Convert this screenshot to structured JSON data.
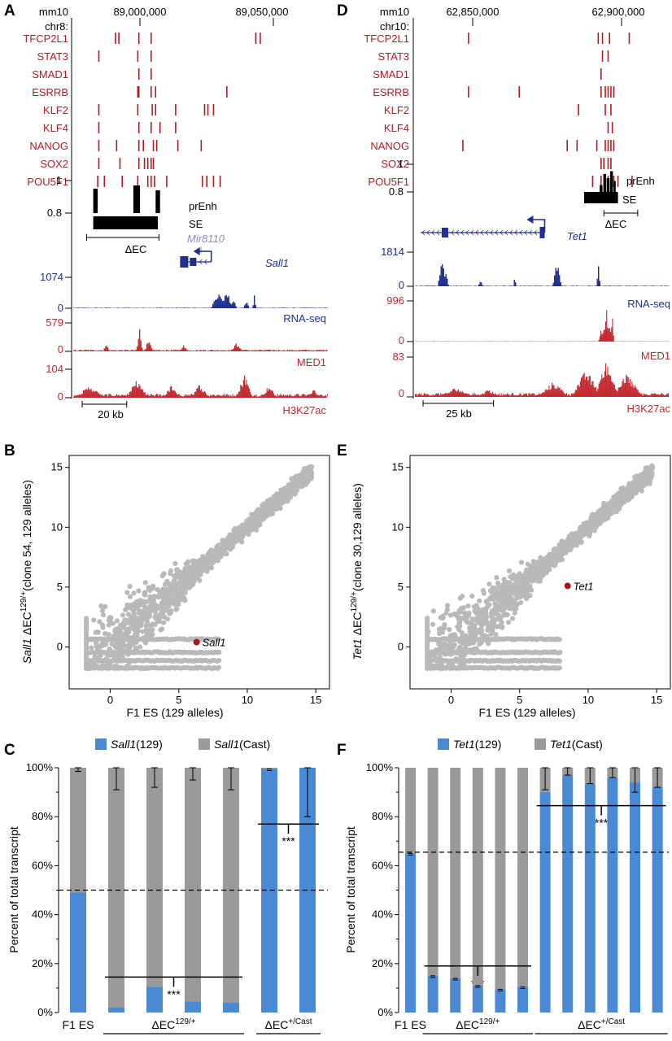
{
  "panel_labels": {
    "a": "A",
    "b": "B",
    "c": "C",
    "d": "D",
    "e": "E",
    "f": "F"
  },
  "colors": {
    "tf_red": "#b01e23",
    "rnaseq_blue": "#1f2f8f",
    "signal_red": "#c1272d",
    "mir_label": "#8a8fc8",
    "bar_blue": "#4a8ad4",
    "bar_gray": "#9a9a9a",
    "scatter_gray": "#b9b9b9",
    "highlight_point": "#a4161b",
    "black": "#000000"
  },
  "chart_data": [
    {
      "id": "A",
      "type": "genome-browser",
      "assembly": "mm10",
      "chrom": "chr8:",
      "coord_ticks": [
        {
          "label": "89,000,000",
          "pos": 89000000
        },
        {
          "label": "89,050,000",
          "pos": 89050000
        }
      ],
      "view_range": [
        88966000,
        89080000
      ],
      "tf_tracks": [
        {
          "name": "TFCP2L1",
          "peaks": [
            88985000,
            88986500,
            88995500,
            89001000,
            89048000,
            89050000
          ]
        },
        {
          "name": "STAT3",
          "peaks": [
            88977500,
            88995000,
            89001000
          ]
        },
        {
          "name": "SMAD1",
          "peaks": [
            88995500,
            89001000
          ]
        },
        {
          "name": "ESRRB",
          "peaks": [
            88995000,
            88995500,
            89001000,
            89003000,
            89035000
          ]
        },
        {
          "name": "KLF2",
          "peaks": [
            88977500,
            88995000,
            89001500,
            89003000,
            89012000,
            89025000,
            89026500,
            89029000
          ]
        },
        {
          "name": "KLF4",
          "peaks": [
            88977500,
            88995500,
            89001000,
            89005000,
            89012000
          ]
        },
        {
          "name": "NANOG",
          "peaks": [
            88977500,
            88985500,
            88995500,
            88997500,
            89002000,
            89003500,
            89013000,
            89023500
          ]
        },
        {
          "name": "SOX2",
          "peaks": [
            88977500,
            88987000,
            88995500,
            88998000,
            88999500,
            89001000,
            89002000
          ]
        },
        {
          "name": "POU5F1",
          "peaks": [
            88977000,
            88980000,
            88988000,
            88995000,
            88999500,
            89001000,
            89002500,
            89008000,
            89024000,
            89026000,
            89029000,
            89032000
          ]
        }
      ],
      "prEnh": {
        "label": "prEnh",
        "ymin": "0.8",
        "ymax": "1",
        "bars": [
          {
            "start": 88975000,
            "end": 88977000,
            "value": 0.95
          },
          {
            "start": 88993000,
            "end": 88996000,
            "value": 0.97
          },
          {
            "start": 89003000,
            "end": 89005000,
            "value": 0.94
          }
        ]
      },
      "se": {
        "label": "SE",
        "start": 88975000,
        "end": 89004000
      },
      "deletion": {
        "label": "ΔEC",
        "start": 88972000,
        "end": 89004500
      },
      "genes": [
        {
          "name": "Mir8110",
          "kind": "mirna"
        },
        {
          "name": "Sall1",
          "kind": "gene",
          "start": 89014000,
          "end": 89028000,
          "strand": "-"
        }
      ],
      "signal_tracks": [
        {
          "name": "RNA-seq",
          "ymax": "1074",
          "ymin": "0",
          "color_key": "rnaseq_blue"
        },
        {
          "name": "MED1",
          "ymax": "579",
          "ymin": "0",
          "color_key": "signal_red"
        },
        {
          "name": "H3K27ac",
          "ymax": "104",
          "ymin": "0",
          "color_key": "signal_red"
        }
      ],
      "scale_bar": {
        "label": "20 kb",
        "kb": 20
      }
    },
    {
      "id": "D",
      "type": "genome-browser",
      "assembly": "mm10",
      "chrom": "chr10:",
      "coord_ticks": [
        {
          "label": "62,850,000",
          "pos": 62850000
        },
        {
          "label": "62,900,000",
          "pos": 62900000
        }
      ],
      "view_range": [
        62830000,
        62920000
      ],
      "tf_tracks": [
        {
          "name": "TFCP2L1",
          "peaks": [
            62849000,
            62895000,
            62896500,
            62899000,
            62906000
          ]
        },
        {
          "name": "STAT3",
          "peaks": [
            62896500,
            62898500
          ]
        },
        {
          "name": "SMAD1",
          "peaks": [
            62896000
          ]
        },
        {
          "name": "ESRRB",
          "peaks": [
            62849000,
            62867000,
            62896000,
            62897500,
            62898500,
            62899500,
            62900500
          ]
        },
        {
          "name": "KLF2",
          "peaks": [
            62888000,
            62897500,
            62899500
          ]
        },
        {
          "name": "KLF4",
          "peaks": [
            62898500,
            62900000
          ]
        },
        {
          "name": "NANOG",
          "peaks": [
            62847000,
            62884000,
            62887500,
            62894500,
            62897500,
            62898500,
            62899500,
            62900500
          ]
        },
        {
          "name": "SOX2",
          "peaks": [
            62896000,
            62897000,
            62898500,
            62899500
          ]
        },
        {
          "name": "POU5F1",
          "peaks": [
            62893000,
            62896000,
            62897500,
            62898500,
            62899500,
            62900500,
            62902000,
            62907000
          ]
        }
      ],
      "prEnh": {
        "label": "prEnh",
        "ymin": "0.8",
        "ymax": "1",
        "bars": [
          {
            "start": 62895500,
            "end": 62896500,
            "value": 0.85
          },
          {
            "start": 62896800,
            "end": 62897800,
            "value": 0.93
          },
          {
            "start": 62898000,
            "end": 62899000,
            "value": 0.9
          },
          {
            "start": 62899200,
            "end": 62900200,
            "value": 0.95
          },
          {
            "start": 62900400,
            "end": 62901200,
            "value": 0.88
          }
        ]
      },
      "se": {
        "label": "SE",
        "start": 62890000,
        "end": 62902000
      },
      "deletion": {
        "label": "ΔEC",
        "start": 62897000,
        "end": 62909000
      },
      "genes": [
        {
          "name": "Tet1",
          "kind": "gene",
          "start": 62832000,
          "end": 62876000,
          "strand": "-"
        }
      ],
      "signal_tracks": [
        {
          "name": "RNA-seq",
          "ymax": "1814",
          "ymin": "0",
          "color_key": "rnaseq_blue"
        },
        {
          "name": "MED1",
          "ymax": "996",
          "ymin": "0",
          "color_key": "signal_red"
        },
        {
          "name": "H3K27ac",
          "ymax": "83",
          "ymin": "0",
          "color_key": "signal_red"
        }
      ],
      "scale_bar": {
        "label": "25 kb",
        "kb": 25
      }
    },
    {
      "id": "B",
      "type": "scatter",
      "xlabel": "F1 ES (129 alleles)",
      "ylabel_parts": {
        "gene": "Sall1",
        "mid": " ΔEC",
        "sup": "129/+",
        "tail": "(clone 54, 129 alleles)"
      },
      "xlim": [
        -3,
        16
      ],
      "ylim": [
        -3.5,
        16
      ],
      "xticks": [
        0,
        5,
        10,
        15
      ],
      "yticks": [
        0,
        5,
        10,
        15
      ],
      "highlight": {
        "label": "Sall1",
        "x": 6.3,
        "y": 0.4
      }
    },
    {
      "id": "E",
      "type": "scatter",
      "xlabel": "F1 ES (129 alleles)",
      "ylabel_parts": {
        "gene": "Tet1",
        "mid": " ΔEC",
        "sup": "129/+",
        "tail": "(clone 30,129 alleles)"
      },
      "xlim": [
        -3,
        16
      ],
      "ylim": [
        -3.5,
        16
      ],
      "xticks": [
        0,
        5,
        10,
        15
      ],
      "yticks": [
        0,
        5,
        10,
        15
      ],
      "highlight": {
        "label": "Tet1",
        "x": 8.5,
        "y": 5.1
      }
    },
    {
      "id": "C",
      "type": "bar",
      "stacked": true,
      "ylabel": "Percent of total transcript",
      "ylim": [
        0,
        100
      ],
      "yticks": [
        "0%",
        "20%",
        "40%",
        "60%",
        "80%",
        "100%"
      ],
      "legend": [
        {
          "gene": "Sall1",
          "suffix": "(129)",
          "color_key": "bar_blue"
        },
        {
          "gene": "Sall1",
          "suffix": "(Cast)",
          "color_key": "bar_gray"
        }
      ],
      "series": [
        {
          "name": "Sall1(129)",
          "values": [
            49,
            2,
            10.5,
            4.5,
            4,
            99.5,
            100
          ]
        },
        {
          "name": "Sall1(Cast)",
          "values": [
            51,
            98,
            89.5,
            95.5,
            96,
            0.5,
            0
          ]
        }
      ],
      "errors": [
        1.5,
        9,
        8,
        5,
        9,
        0.5,
        20
      ],
      "groups": [
        {
          "label": "F1 ES",
          "sup": "",
          "start": 0,
          "end": 0
        },
        {
          "label": "ΔEC",
          "sup": "129/+",
          "start": 1,
          "end": 4
        },
        {
          "label": "ΔEC",
          "sup": "+/Cast",
          "start": 5,
          "end": 6
        }
      ],
      "reference_line": 50,
      "significance": [
        {
          "label": "***",
          "from": 1,
          "to": 4,
          "y": 14.5
        },
        {
          "label": "***",
          "from": 5,
          "to": 6,
          "y": 77
        }
      ]
    },
    {
      "id": "F",
      "type": "bar",
      "stacked": true,
      "ylabel": "Percent of total transcript",
      "ylim": [
        0,
        100
      ],
      "yticks": [
        "0%",
        "20%",
        "40%",
        "60%",
        "80%",
        "100%"
      ],
      "legend": [
        {
          "gene": "Tet1",
          "suffix": "(129)",
          "color_key": "bar_blue"
        },
        {
          "gene": "Tet1",
          "suffix": "(Cast)",
          "color_key": "bar_gray"
        }
      ],
      "series": [
        {
          "name": "Tet1(129)",
          "values": [
            65,
            15,
            14,
            11,
            9.5,
            10.5,
            90,
            97,
            93.5,
            96,
            94,
            92
          ]
        },
        {
          "name": "Tet1(Cast)",
          "values": [
            35,
            85,
            86,
            89,
            90.5,
            89.5,
            10,
            3,
            6.5,
            4,
            6,
            8
          ]
        }
      ],
      "errors": [
        0.5,
        0.5,
        0.5,
        0.5,
        0.5,
        0.5,
        9,
        3,
        6.5,
        4,
        10,
        8
      ],
      "groups": [
        {
          "label": "F1 ES",
          "sup": "",
          "start": 0,
          "end": 0
        },
        {
          "label": "ΔEC",
          "sup": "129/+",
          "start": 1,
          "end": 5
        },
        {
          "label": "ΔEC",
          "sup": "+/Cast",
          "start": 6,
          "end": 11
        }
      ],
      "reference_line": 65.5,
      "significance": [
        {
          "label": "***",
          "from": 1,
          "to": 5,
          "y": 19
        },
        {
          "label": "***",
          "from": 6,
          "to": 11,
          "y": 84.5
        }
      ],
      "extra_marks": [
        {
          "label": "**",
          "bar": 6,
          "y": 84
        }
      ]
    }
  ]
}
